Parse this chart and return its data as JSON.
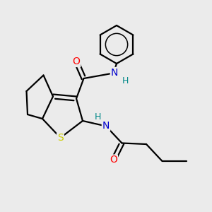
{
  "bg_color": "#ebebeb",
  "bond_color": "#000000",
  "bond_width": 1.6,
  "atom_colors": {
    "N": "#0000cc",
    "O": "#ff0000",
    "S": "#cccc00",
    "H": "#008888"
  },
  "font_size_atoms": 10,
  "font_size_H": 9
}
